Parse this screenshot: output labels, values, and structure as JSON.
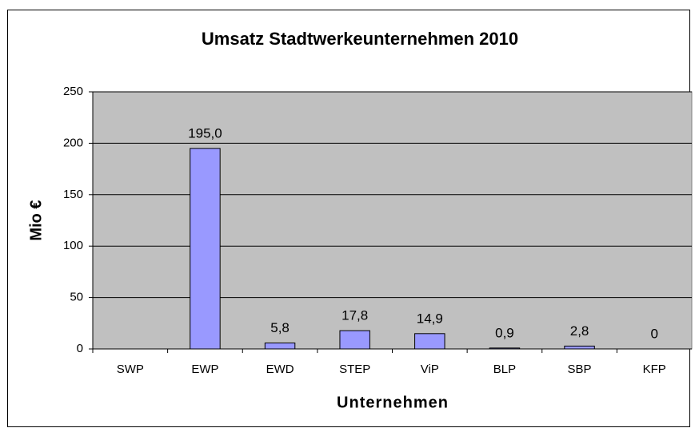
{
  "chart_data": {
    "type": "bar",
    "title": "Umsatz Stadtwerkeunternehmen 2010",
    "x_label": "Unternehmen",
    "y_label": "Mio €",
    "categories": [
      "SWP",
      "EWP",
      "EWD",
      "STEP",
      "ViP",
      "BLP",
      "SBP",
      "KFP"
    ],
    "values": [
      null,
      195.0,
      5.8,
      17.8,
      14.9,
      0.9,
      2.8,
      0
    ],
    "value_labels": [
      null,
      "195,0",
      "5,8",
      "17,8",
      "14,9",
      "0,9",
      "2,8",
      "0"
    ],
    "color": "#9999ff",
    "plot_background": "#c0c0c0",
    "ylim": [
      0,
      250
    ],
    "yticks": [
      0,
      50,
      100,
      150,
      200,
      250
    ],
    "grid": true
  }
}
